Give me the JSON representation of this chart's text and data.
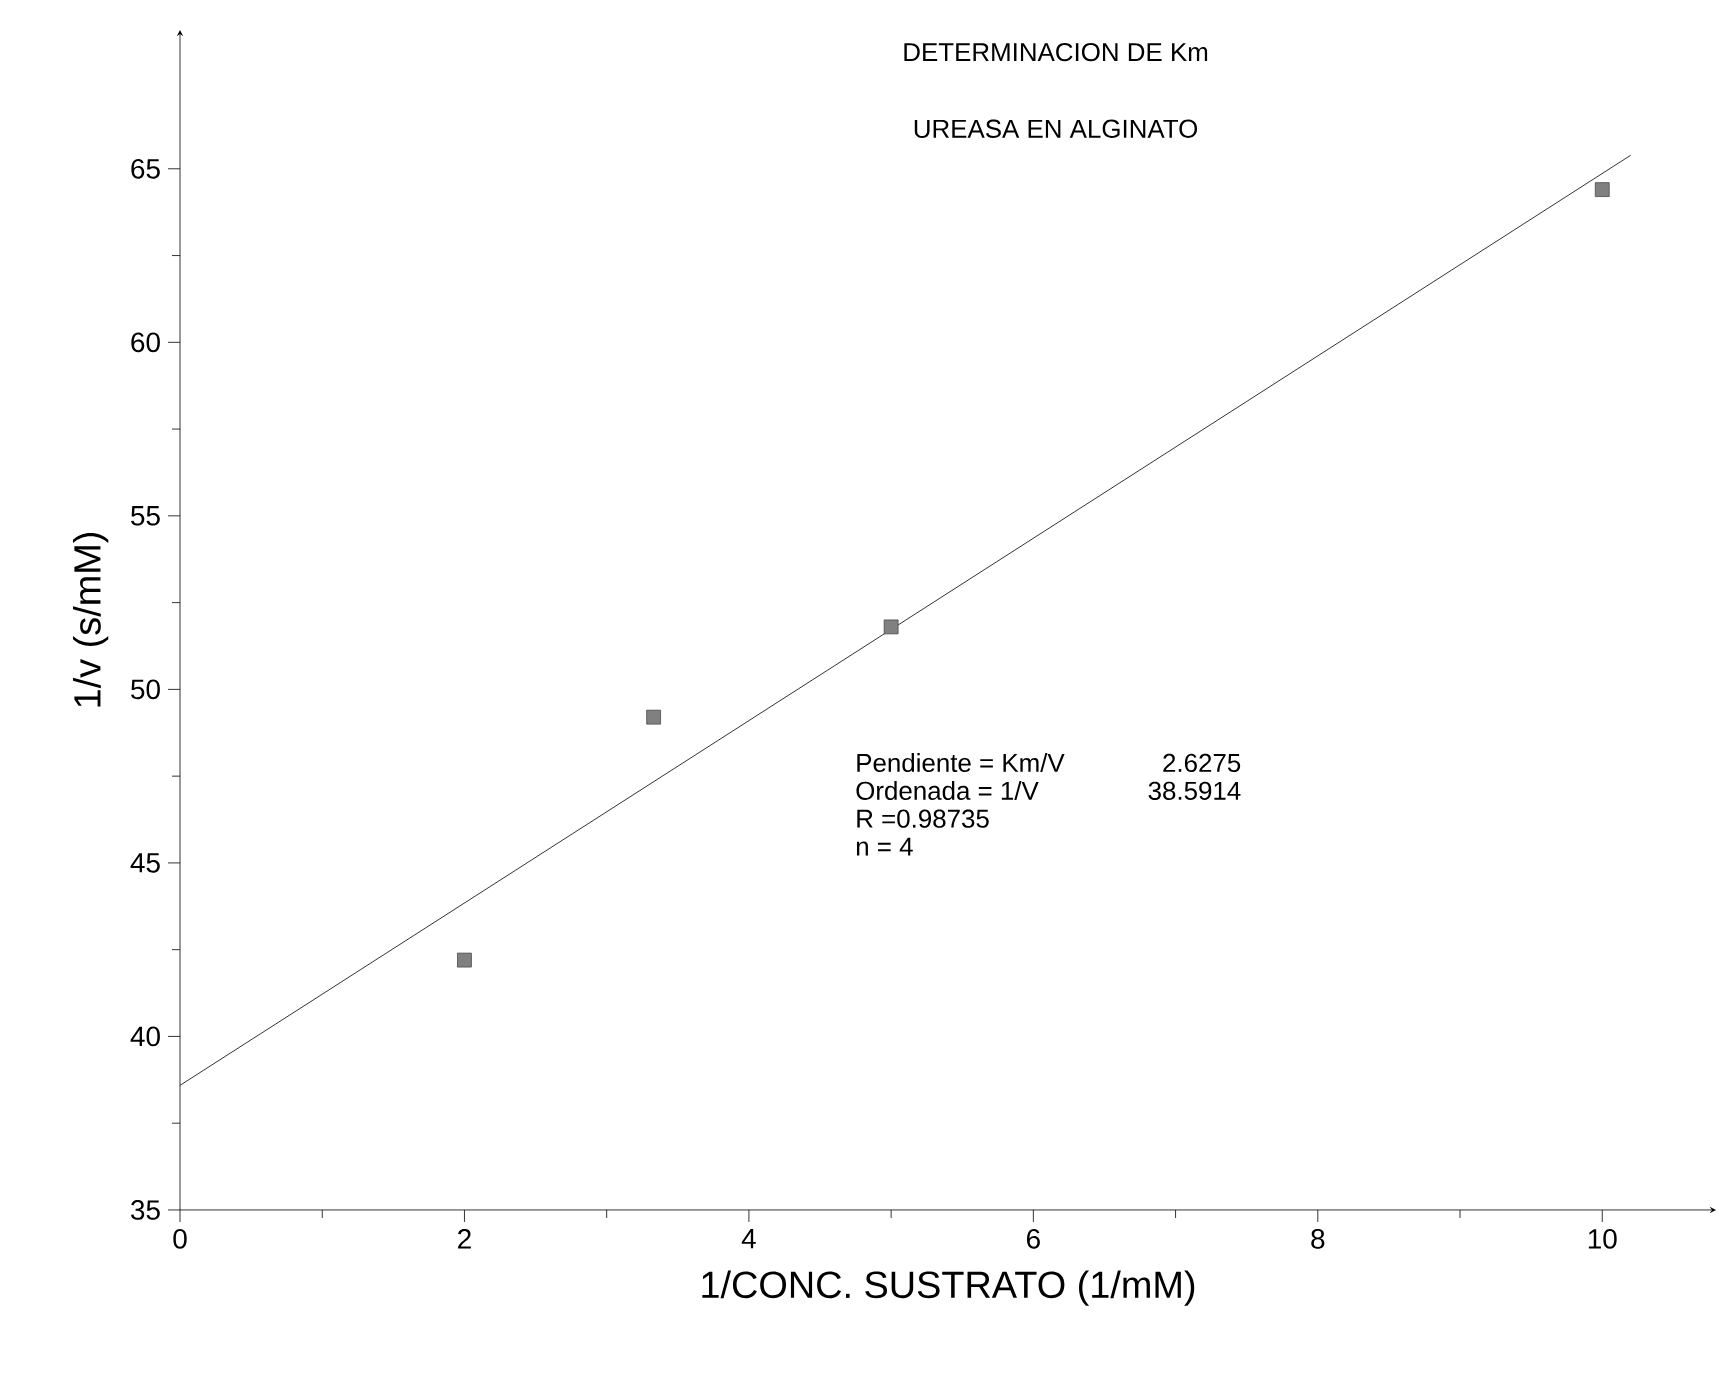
{
  "chart_data": {
    "type": "scatter",
    "title": "DETERMINACION DE Km",
    "subtitle": "UREASA EN ALGINATO",
    "xlabel": "1/CONC. SUSTRATO (1/mM)",
    "ylabel": "1/v (s/mM)",
    "series": [
      {
        "color": "#808080",
        "marker": "square",
        "x": [
          2,
          3.33,
          5,
          10
        ],
        "values": [
          42.2,
          49.2,
          51.8,
          64.4
        ]
      },
      {
        "type": "line",
        "color": "#000000",
        "marker": "none",
        "x": [
          0,
          10.2
        ],
        "values": [
          38.59,
          65.39
        ]
      }
    ],
    "xlim": [
      0,
      10.8
    ],
    "ylim": [
      35,
      69
    ],
    "xticks": [
      0,
      2,
      4,
      6,
      8,
      10
    ],
    "yticks": [
      35,
      40,
      45,
      50,
      55,
      60,
      65
    ],
    "grid": false,
    "annotations": [
      "Pendiente = Km/V",
      "2.6275",
      "Ordenada = 1/V",
      "38.5914",
      "R =0.98735",
      "n = 4"
    ]
  }
}
